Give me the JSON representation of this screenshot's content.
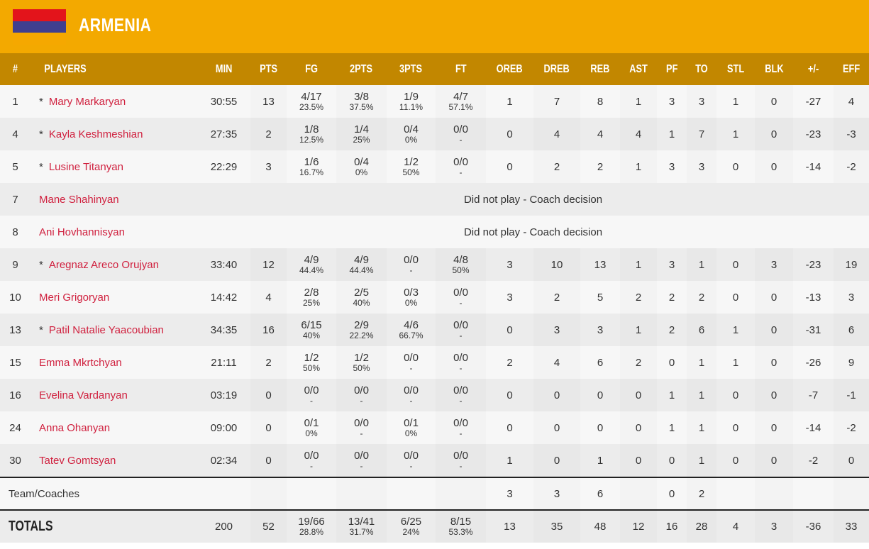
{
  "team": {
    "name": "ARMENIA",
    "flag_colors": [
      "#e3141b",
      "#3f3f8f",
      "#f5a800"
    ]
  },
  "headers": [
    "#",
    "PLAYERS",
    "MIN",
    "PTS",
    "FG",
    "2PTS",
    "3PTS",
    "FT",
    "OREB",
    "DREB",
    "REB",
    "AST",
    "PF",
    "TO",
    "STL",
    "BLK",
    "+/-",
    "EFF"
  ],
  "players": [
    {
      "no": "1",
      "starter": true,
      "name": "Mary Markaryan",
      "min": "30:55",
      "pts": "13",
      "fg": [
        "4/17",
        "23.5%"
      ],
      "p2": [
        "3/8",
        "37.5%"
      ],
      "p3": [
        "1/9",
        "11.1%"
      ],
      "ft": [
        "4/7",
        "57.1%"
      ],
      "oreb": "1",
      "dreb": "7",
      "reb": "8",
      "ast": "1",
      "pf": "3",
      "to": "3",
      "stl": "1",
      "blk": "0",
      "pm": "-27",
      "eff": "4"
    },
    {
      "no": "4",
      "starter": true,
      "name": "Kayla Keshmeshian",
      "min": "27:35",
      "pts": "2",
      "fg": [
        "1/8",
        "12.5%"
      ],
      "p2": [
        "1/4",
        "25%"
      ],
      "p3": [
        "0/4",
        "0%"
      ],
      "ft": [
        "0/0",
        "-"
      ],
      "oreb": "0",
      "dreb": "4",
      "reb": "4",
      "ast": "4",
      "pf": "1",
      "to": "7",
      "stl": "1",
      "blk": "0",
      "pm": "-23",
      "eff": "-3"
    },
    {
      "no": "5",
      "starter": true,
      "name": "Lusine Titanyan",
      "min": "22:29",
      "pts": "3",
      "fg": [
        "1/6",
        "16.7%"
      ],
      "p2": [
        "0/4",
        "0%"
      ],
      "p3": [
        "1/2",
        "50%"
      ],
      "ft": [
        "0/0",
        "-"
      ],
      "oreb": "0",
      "dreb": "2",
      "reb": "2",
      "ast": "1",
      "pf": "3",
      "to": "3",
      "stl": "0",
      "blk": "0",
      "pm": "-14",
      "eff": "-2"
    },
    {
      "no": "7",
      "starter": false,
      "name": "Mane Shahinyan",
      "dnp": "Did not play - Coach decision"
    },
    {
      "no": "8",
      "starter": false,
      "name": "Ani Hovhannisyan",
      "dnp": "Did not play - Coach decision"
    },
    {
      "no": "9",
      "starter": true,
      "name": "Aregnaz Areco Orujyan",
      "min": "33:40",
      "pts": "12",
      "fg": [
        "4/9",
        "44.4%"
      ],
      "p2": [
        "4/9",
        "44.4%"
      ],
      "p3": [
        "0/0",
        "-"
      ],
      "ft": [
        "4/8",
        "50%"
      ],
      "oreb": "3",
      "dreb": "10",
      "reb": "13",
      "ast": "1",
      "pf": "3",
      "to": "1",
      "stl": "0",
      "blk": "3",
      "pm": "-23",
      "eff": "19"
    },
    {
      "no": "10",
      "starter": false,
      "name": "Meri Grigoryan",
      "min": "14:42",
      "pts": "4",
      "fg": [
        "2/8",
        "25%"
      ],
      "p2": [
        "2/5",
        "40%"
      ],
      "p3": [
        "0/3",
        "0%"
      ],
      "ft": [
        "0/0",
        "-"
      ],
      "oreb": "3",
      "dreb": "2",
      "reb": "5",
      "ast": "2",
      "pf": "2",
      "to": "2",
      "stl": "0",
      "blk": "0",
      "pm": "-13",
      "eff": "3"
    },
    {
      "no": "13",
      "starter": true,
      "name": "Patil Natalie Yaacoubian",
      "min": "34:35",
      "pts": "16",
      "fg": [
        "6/15",
        "40%"
      ],
      "p2": [
        "2/9",
        "22.2%"
      ],
      "p3": [
        "4/6",
        "66.7%"
      ],
      "ft": [
        "0/0",
        "-"
      ],
      "oreb": "0",
      "dreb": "3",
      "reb": "3",
      "ast": "1",
      "pf": "2",
      "to": "6",
      "stl": "1",
      "blk": "0",
      "pm": "-31",
      "eff": "6"
    },
    {
      "no": "15",
      "starter": false,
      "name": "Emma Mkrtchyan",
      "min": "21:11",
      "pts": "2",
      "fg": [
        "1/2",
        "50%"
      ],
      "p2": [
        "1/2",
        "50%"
      ],
      "p3": [
        "0/0",
        "-"
      ],
      "ft": [
        "0/0",
        "-"
      ],
      "oreb": "2",
      "dreb": "4",
      "reb": "6",
      "ast": "2",
      "pf": "0",
      "to": "1",
      "stl": "1",
      "blk": "0",
      "pm": "-26",
      "eff": "9"
    },
    {
      "no": "16",
      "starter": false,
      "name": "Evelina Vardanyan",
      "min": "03:19",
      "pts": "0",
      "fg": [
        "0/0",
        "-"
      ],
      "p2": [
        "0/0",
        "-"
      ],
      "p3": [
        "0/0",
        "-"
      ],
      "ft": [
        "0/0",
        "-"
      ],
      "oreb": "0",
      "dreb": "0",
      "reb": "0",
      "ast": "0",
      "pf": "1",
      "to": "1",
      "stl": "0",
      "blk": "0",
      "pm": "-7",
      "eff": "-1"
    },
    {
      "no": "24",
      "starter": false,
      "name": "Anna Ohanyan",
      "min": "09:00",
      "pts": "0",
      "fg": [
        "0/1",
        "0%"
      ],
      "p2": [
        "0/0",
        "-"
      ],
      "p3": [
        "0/1",
        "0%"
      ],
      "ft": [
        "0/0",
        "-"
      ],
      "oreb": "0",
      "dreb": "0",
      "reb": "0",
      "ast": "0",
      "pf": "1",
      "to": "1",
      "stl": "0",
      "blk": "0",
      "pm": "-14",
      "eff": "-2"
    },
    {
      "no": "30",
      "starter": false,
      "name": "Tatev Gomtsyan",
      "min": "02:34",
      "pts": "0",
      "fg": [
        "0/0",
        "-"
      ],
      "p2": [
        "0/0",
        "-"
      ],
      "p3": [
        "0/0",
        "-"
      ],
      "ft": [
        "0/0",
        "-"
      ],
      "oreb": "1",
      "dreb": "0",
      "reb": "1",
      "ast": "0",
      "pf": "0",
      "to": "1",
      "stl": "0",
      "blk": "0",
      "pm": "-2",
      "eff": "0"
    }
  ],
  "team_row": {
    "label": "Team/Coaches",
    "min": "",
    "pts": "",
    "fg": [
      "",
      ""
    ],
    "p2": [
      "",
      ""
    ],
    "p3": [
      "",
      ""
    ],
    "ft": [
      "",
      ""
    ],
    "oreb": "3",
    "dreb": "3",
    "reb": "6",
    "ast": "",
    "pf": "0",
    "to": "2",
    "stl": "",
    "blk": "",
    "pm": "",
    "eff": ""
  },
  "totals": {
    "label": "TOTALS",
    "min": "200",
    "pts": "52",
    "fg": [
      "19/66",
      "28.8%"
    ],
    "p2": [
      "13/41",
      "31.7%"
    ],
    "p3": [
      "6/25",
      "24%"
    ],
    "ft": [
      "8/15",
      "53.3%"
    ],
    "oreb": "13",
    "dreb": "35",
    "reb": "48",
    "ast": "12",
    "pf": "16",
    "to": "28",
    "stl": "4",
    "blk": "3",
    "pm": "-36",
    "eff": "33"
  }
}
